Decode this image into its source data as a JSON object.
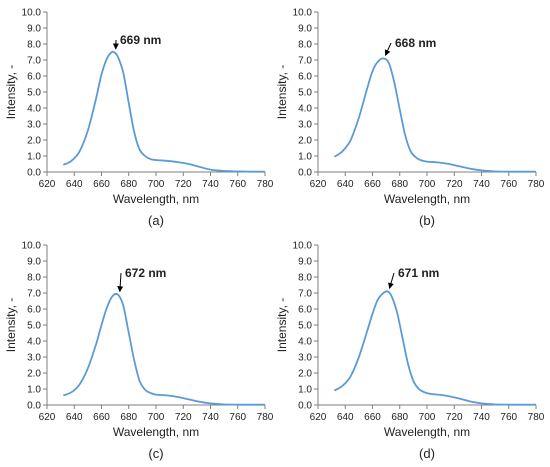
{
  "colors": {
    "line": "#5b9bd5",
    "axis": "#7f7f7f",
    "text": "#222222",
    "arrow": "#000000"
  },
  "chart_data": [
    {
      "type": "line",
      "panel_label": "(a)",
      "xlabel": "Wavelength, nm",
      "ylabel": "Intensity, -",
      "xlim": [
        620,
        780
      ],
      "ylim": [
        0,
        10
      ],
      "xticks": [
        "620",
        "640",
        "660",
        "680",
        "700",
        "720",
        "740",
        "760",
        "780"
      ],
      "yticks": [
        "0.0",
        "1.0",
        "2.0",
        "3.0",
        "4.0",
        "5.0",
        "6.0",
        "7.0",
        "8.0",
        "9.0",
        "10.0"
      ],
      "annotation": {
        "text": "669 nm",
        "x": 669,
        "y": 7.5
      },
      "x": [
        632,
        638,
        644,
        650,
        656,
        660,
        664,
        667,
        669,
        672,
        676,
        680,
        684,
        688,
        692,
        696,
        700,
        708,
        716,
        724,
        732,
        740,
        750,
        760,
        770,
        780
      ],
      "y": [
        0.45,
        0.7,
        1.3,
        2.6,
        4.6,
        6.1,
        7.1,
        7.45,
        7.5,
        7.2,
        6.2,
        4.3,
        2.5,
        1.4,
        1.0,
        0.8,
        0.75,
        0.7,
        0.62,
        0.5,
        0.32,
        0.15,
        0.07,
        0.04,
        0.02,
        0.02
      ]
    },
    {
      "type": "line",
      "panel_label": "(b)",
      "xlabel": "Wavelength, nm",
      "ylabel": "Intensity, -",
      "xlim": [
        620,
        780
      ],
      "ylim": [
        0,
        10
      ],
      "xticks": [
        "620",
        "640",
        "660",
        "680",
        "700",
        "720",
        "740",
        "760",
        "780"
      ],
      "yticks": [
        "0.0",
        "1.0",
        "2.0",
        "3.0",
        "4.0",
        "5.0",
        "6.0",
        "7.0",
        "8.0",
        "9.0",
        "10.0"
      ],
      "annotation": {
        "text": "668 nm",
        "x": 668,
        "y": 7.1
      },
      "x": [
        632,
        638,
        644,
        650,
        656,
        660,
        664,
        668,
        672,
        676,
        680,
        684,
        688,
        692,
        696,
        700,
        708,
        716,
        724,
        732,
        740,
        750,
        760,
        770,
        780
      ],
      "y": [
        0.95,
        1.3,
        2.0,
        3.4,
        5.2,
        6.3,
        6.9,
        7.1,
        6.8,
        5.6,
        3.9,
        2.3,
        1.3,
        0.9,
        0.72,
        0.65,
        0.6,
        0.5,
        0.35,
        0.2,
        0.1,
        0.04,
        0.02,
        0.02,
        0.02
      ]
    },
    {
      "type": "line",
      "panel_label": "(c)",
      "xlabel": "Wavelength, nm",
      "ylabel": "Intensity, -",
      "xlim": [
        620,
        780
      ],
      "ylim": [
        0,
        10
      ],
      "xticks": [
        "620",
        "640",
        "660",
        "680",
        "700",
        "720",
        "740",
        "760",
        "780"
      ],
      "yticks": [
        "0.0",
        "1.0",
        "2.0",
        "3.0",
        "4.0",
        "5.0",
        "6.0",
        "7.0",
        "8.0",
        "9.0",
        "10.0"
      ],
      "annotation": {
        "text": "672 nm",
        "x": 672,
        "y": 6.9
      },
      "x": [
        632,
        638,
        644,
        650,
        656,
        660,
        664,
        668,
        672,
        676,
        680,
        684,
        688,
        692,
        696,
        700,
        708,
        716,
        724,
        732,
        740,
        750,
        760,
        770,
        780
      ],
      "y": [
        0.6,
        0.8,
        1.3,
        2.3,
        3.8,
        5.0,
        6.1,
        6.8,
        6.9,
        6.2,
        4.5,
        2.8,
        1.5,
        0.95,
        0.75,
        0.65,
        0.6,
        0.5,
        0.35,
        0.2,
        0.1,
        0.04,
        0.02,
        0.02,
        0.02
      ]
    },
    {
      "type": "line",
      "panel_label": "(d)",
      "xlabel": "Wavelength, nm",
      "ylabel": "Intensity, -",
      "xlim": [
        620,
        780
      ],
      "ylim": [
        0,
        10
      ],
      "xticks": [
        "620",
        "640",
        "660",
        "680",
        "700",
        "720",
        "740",
        "760",
        "780"
      ],
      "yticks": [
        "0.0",
        "1.0",
        "2.0",
        "3.0",
        "4.0",
        "5.0",
        "6.0",
        "7.0",
        "8.0",
        "9.0",
        "10.0"
      ],
      "annotation": {
        "text": "671 nm",
        "x": 671,
        "y": 7.1
      },
      "x": [
        632,
        638,
        644,
        650,
        656,
        660,
        664,
        668,
        671,
        674,
        678,
        682,
        686,
        690,
        694,
        698,
        702,
        708,
        716,
        724,
        732,
        740,
        750,
        760,
        770,
        780
      ],
      "y": [
        0.9,
        1.2,
        1.8,
        3.0,
        4.6,
        5.7,
        6.6,
        7.0,
        7.1,
        6.8,
        5.8,
        4.2,
        2.6,
        1.5,
        1.0,
        0.8,
        0.7,
        0.65,
        0.55,
        0.4,
        0.22,
        0.1,
        0.04,
        0.02,
        0.02,
        0.02
      ]
    }
  ]
}
